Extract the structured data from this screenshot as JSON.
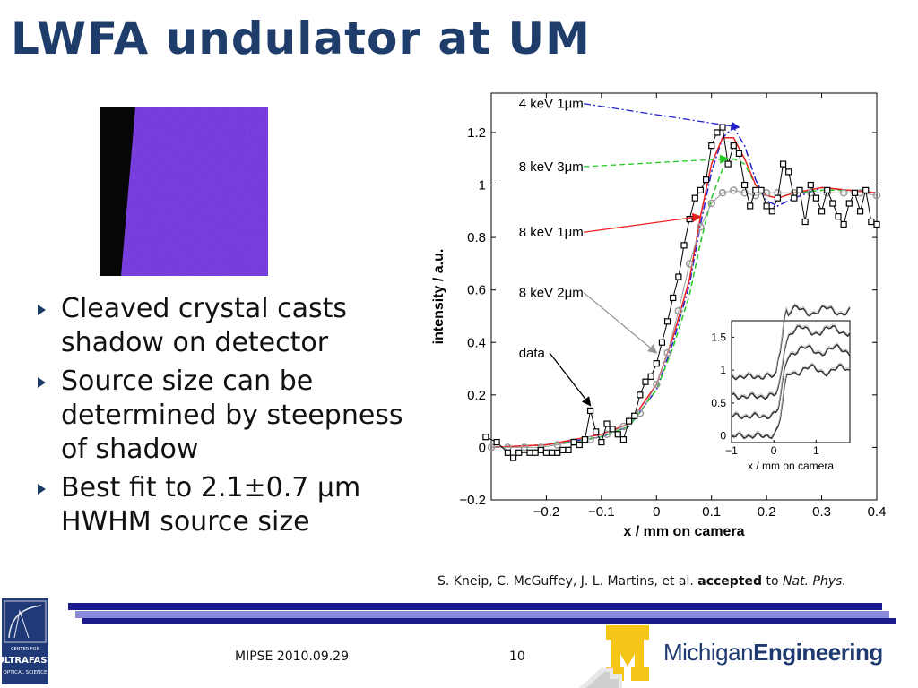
{
  "slide": {
    "title": "LWFA undulator at UM",
    "bullets": [
      "Cleaved crystal casts shadow on detector",
      "Source size can be determined by steepness of shadow",
      "Best fit to 2.1±0.7 μm HWHM source size"
    ],
    "citation": {
      "authors": "S. Kneip, C. McGuffey, J. L. Martins, et al.",
      "status": "accepted",
      "to": "to",
      "journal": "Nat. Phys."
    },
    "footer": {
      "event": "MIPSE 2010.09.29",
      "page_number": "10",
      "logo_text_light": "Michigan",
      "logo_text_bold": "Engineering",
      "left_logo_text": [
        "CENTER FOR",
        "ULTRAFAST",
        "OPTICAL SCIENCE"
      ]
    }
  },
  "colors": {
    "title": "#1f3d6b",
    "footer_bar_dark": "#1a1a8a",
    "footer_bar_light": "#8a8ad6",
    "crystal_purple": "#7a36e0",
    "michigan_maize": "#f5c518",
    "michigan_blue": "#1f3a70"
  },
  "chart_data": {
    "type": "line",
    "xlabel": "x / mm on camera",
    "ylabel": "intensity / a.u.",
    "xlim": [
      -0.3,
      0.4
    ],
    "ylim": [
      -0.2,
      1.35
    ],
    "xticks": [
      -0.2,
      -0.1,
      0,
      0.1,
      0.2,
      0.3,
      0.4
    ],
    "xtick_labels": [
      "−0.2",
      "−0.1",
      "0",
      "0.1",
      "0.2",
      "0.3",
      "0.4"
    ],
    "yticks": [
      -0.2,
      0,
      0.2,
      0.4,
      0.6,
      0.8,
      1,
      1.2
    ],
    "ytick_labels": [
      "−0.2",
      "0",
      "0.2",
      "0.4",
      "0.6",
      "0.8",
      "1",
      "1.2"
    ],
    "series": [
      {
        "name": "4 keV 1μm",
        "color": "#2222cc",
        "style": "dashdot",
        "x": [
          -0.3,
          -0.2,
          -0.1,
          -0.05,
          0,
          0.03,
          0.06,
          0.08,
          0.1,
          0.12,
          0.14,
          0.16,
          0.18,
          0.2,
          0.22,
          0.25,
          0.3,
          0.35,
          0.4
        ],
        "y": [
          0.0,
          0.01,
          0.04,
          0.08,
          0.22,
          0.4,
          0.62,
          0.85,
          1.05,
          1.18,
          1.22,
          1.15,
          1.02,
          0.94,
          0.92,
          0.95,
          0.99,
          0.98,
          0.97
        ]
      },
      {
        "name": "8 keV 3μm",
        "color": "#22cc22",
        "style": "dashed",
        "x": [
          -0.3,
          -0.2,
          -0.1,
          -0.05,
          0,
          0.03,
          0.06,
          0.08,
          0.1,
          0.12,
          0.14,
          0.16,
          0.18,
          0.2,
          0.22,
          0.25,
          0.3,
          0.35,
          0.4
        ],
        "y": [
          0.0,
          0.01,
          0.04,
          0.08,
          0.22,
          0.38,
          0.58,
          0.78,
          0.95,
          1.06,
          1.1,
          1.08,
          1.0,
          0.96,
          0.95,
          0.97,
          0.98,
          0.98,
          0.97
        ]
      },
      {
        "name": "8 keV 1μm",
        "color": "#ee2222",
        "style": "solid",
        "x": [
          -0.3,
          -0.2,
          -0.1,
          -0.05,
          0,
          0.03,
          0.06,
          0.08,
          0.1,
          0.12,
          0.14,
          0.16,
          0.18,
          0.2,
          0.22,
          0.25,
          0.3,
          0.35,
          0.4
        ],
        "y": [
          0.0,
          0.01,
          0.05,
          0.09,
          0.24,
          0.42,
          0.64,
          0.88,
          1.08,
          1.18,
          1.18,
          1.1,
          1.0,
          0.96,
          0.95,
          0.97,
          0.99,
          0.98,
          0.97
        ]
      },
      {
        "name": "8 keV 2μm",
        "color": "#999999",
        "style": "circles",
        "x": [
          -0.3,
          -0.27,
          -0.24,
          -0.21,
          -0.18,
          -0.15,
          -0.12,
          -0.09,
          -0.06,
          -0.03,
          0,
          0.02,
          0.04,
          0.06,
          0.08,
          0.1,
          0.12,
          0.14,
          0.16,
          0.18,
          0.2,
          0.22,
          0.25,
          0.28,
          0.31,
          0.34,
          0.37,
          0.4
        ],
        "y": [
          0.0,
          0.0,
          0.0,
          0.0,
          0.01,
          0.02,
          0.03,
          0.05,
          0.08,
          0.13,
          0.24,
          0.36,
          0.52,
          0.7,
          0.84,
          0.93,
          0.97,
          0.98,
          0.97,
          0.96,
          0.97,
          0.97,
          0.97,
          0.97,
          0.97,
          0.97,
          0.97,
          0.96
        ]
      },
      {
        "name": "data",
        "color": "#000000",
        "style": "squares",
        "x": [
          -0.31,
          -0.29,
          -0.27,
          -0.26,
          -0.25,
          -0.23,
          -0.22,
          -0.21,
          -0.2,
          -0.19,
          -0.18,
          -0.17,
          -0.16,
          -0.15,
          -0.14,
          -0.13,
          -0.12,
          -0.11,
          -0.1,
          -0.09,
          -0.08,
          -0.07,
          -0.06,
          -0.05,
          -0.04,
          -0.03,
          -0.02,
          -0.01,
          0.0,
          0.01,
          0.02,
          0.03,
          0.04,
          0.05,
          0.06,
          0.07,
          0.08,
          0.09,
          0.1,
          0.11,
          0.12,
          0.13,
          0.14,
          0.15,
          0.16,
          0.17,
          0.18,
          0.19,
          0.2,
          0.21,
          0.22,
          0.23,
          0.24,
          0.25,
          0.26,
          0.27,
          0.28,
          0.29,
          0.3,
          0.31,
          0.32,
          0.33,
          0.34,
          0.35,
          0.36,
          0.37,
          0.38,
          0.39,
          0.4
        ],
        "y": [
          0.04,
          0.02,
          -0.02,
          -0.04,
          -0.02,
          -0.02,
          -0.02,
          -0.01,
          -0.02,
          -0.02,
          -0.02,
          -0.01,
          -0.01,
          0.02,
          0.01,
          0.03,
          0.14,
          0.06,
          0.02,
          0.09,
          0.07,
          0.05,
          0.03,
          0.1,
          0.12,
          0.2,
          0.25,
          0.27,
          0.32,
          0.4,
          0.48,
          0.57,
          0.65,
          0.77,
          0.87,
          0.95,
          0.98,
          1.02,
          1.15,
          1.2,
          1.22,
          1.08,
          1.15,
          1.12,
          1.0,
          0.92,
          0.98,
          0.98,
          0.92,
          0.9,
          0.95,
          1.08,
          1.05,
          0.95,
          0.98,
          0.86,
          1.0,
          0.95,
          0.9,
          0.98,
          0.93,
          0.88,
          0.85,
          0.93,
          0.97,
          0.9,
          0.98,
          0.86,
          0.85
        ]
      }
    ],
    "annotations": [
      {
        "text": "4 keV 1μm",
        "x": -0.25,
        "y": 1.31,
        "arrow_to": [
          0.15,
          1.22
        ],
        "color": "#2222cc"
      },
      {
        "text": "8 keV 3μm",
        "x": -0.25,
        "y": 1.07,
        "arrow_to": [
          0.13,
          1.1
        ],
        "color": "#22cc22"
      },
      {
        "text": "8 keV 1μm",
        "x": -0.25,
        "y": 0.82,
        "arrow_to": [
          0.08,
          0.88
        ],
        "color": "#ee2222"
      },
      {
        "text": "8 keV 2μm",
        "x": -0.25,
        "y": 0.59,
        "arrow_to": [
          0.0,
          0.36
        ],
        "color": "#999999"
      },
      {
        "text": "data",
        "x": -0.25,
        "y": 0.36,
        "arrow_to": [
          -0.12,
          0.16
        ],
        "color": "#000000"
      }
    ],
    "inset": {
      "type": "line",
      "xlabel": "x / mm on camera",
      "xlim": [
        -1,
        1.8
      ],
      "ylim": [
        -0.1,
        1.75
      ],
      "xticks": [
        -1,
        0,
        1
      ],
      "xtick_labels": [
        "−1",
        "0",
        "1"
      ],
      "yticks": [
        0,
        0.5,
        1,
        1.5
      ],
      "ytick_labels": [
        "0",
        "0.5",
        "1",
        "1.5"
      ],
      "offsets": [
        0,
        0.3,
        0.6,
        0.9
      ]
    }
  }
}
